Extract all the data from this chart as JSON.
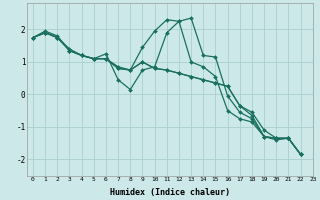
{
  "xlabel": "Humidex (Indice chaleur)",
  "bg_color": "#cce8e8",
  "grid_color": "#aacfcf",
  "line_color": "#1a7060",
  "xlim": [
    -0.5,
    23
  ],
  "ylim": [
    -2.5,
    2.8
  ],
  "xticks": [
    0,
    1,
    2,
    3,
    4,
    5,
    6,
    7,
    8,
    9,
    10,
    11,
    12,
    13,
    14,
    15,
    16,
    17,
    18,
    19,
    20,
    21,
    22,
    23
  ],
  "yticks": [
    -2,
    -1,
    0,
    1,
    2
  ],
  "series": [
    [
      1.75,
      1.95,
      1.8,
      1.35,
      1.2,
      1.1,
      1.1,
      0.85,
      0.75,
      1.45,
      1.95,
      2.3,
      2.25,
      2.35,
      1.2,
      1.15,
      -0.05,
      -0.55,
      -0.75,
      -1.3,
      -1.4,
      -1.35,
      -1.85
    ],
    [
      1.75,
      1.9,
      1.75,
      1.4,
      1.2,
      1.1,
      1.25,
      0.45,
      0.15,
      0.75,
      0.85,
      1.9,
      2.25,
      1.0,
      0.85,
      0.55,
      -0.5,
      -0.75,
      -0.85,
      -1.3,
      -1.35,
      -1.35,
      -1.85
    ],
    [
      1.75,
      1.9,
      1.75,
      1.35,
      1.2,
      1.1,
      1.1,
      0.8,
      0.75,
      1.0,
      0.8,
      0.75,
      0.65,
      0.55,
      0.45,
      0.35,
      0.25,
      -0.35,
      -0.65,
      -1.3,
      -1.35,
      -1.35,
      -1.85
    ],
    [
      1.75,
      1.9,
      1.75,
      1.35,
      1.2,
      1.1,
      1.1,
      0.8,
      0.75,
      1.0,
      0.8,
      0.75,
      0.65,
      0.55,
      0.45,
      0.35,
      0.25,
      -0.35,
      -0.55,
      -1.1,
      -1.35,
      -1.35,
      -1.85
    ]
  ]
}
